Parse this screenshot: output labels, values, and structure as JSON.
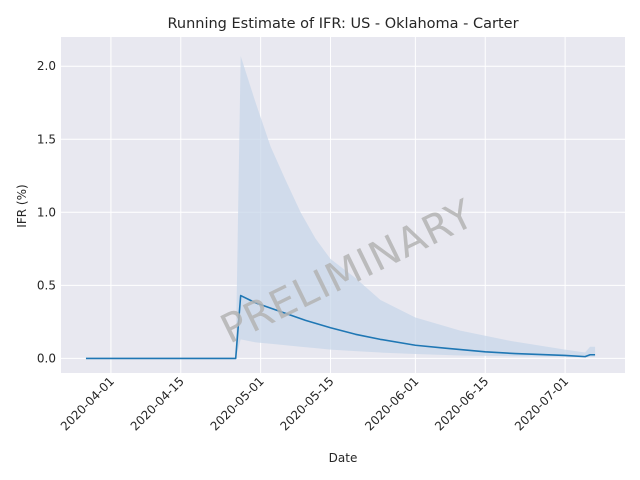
{
  "chart_data": {
    "type": "line",
    "title": "Running Estimate of IFR: US - Oklahoma - Carter",
    "xlabel": "Date",
    "ylabel": "IFR (%)",
    "watermark": "PRELIMINARY",
    "x_tick_labels": [
      "2020-04-01",
      "2020-04-15",
      "2020-05-01",
      "2020-05-15",
      "2020-06-01",
      "2020-06-15",
      "2020-07-01"
    ],
    "y_tick_labels": [
      "0.0",
      "0.5",
      "1.0",
      "1.5",
      "2.0"
    ],
    "x_range": [
      "2020-03-22",
      "2020-07-13"
    ],
    "y_range": [
      -0.1,
      2.2
    ],
    "grid": true,
    "colors": {
      "line": "#1f77b4",
      "band": "#c8d7ea",
      "plot_background": "#e8e8f0",
      "grid": "#ffffff"
    },
    "series": [
      {
        "values": [
          [
            "2020-03-27",
            0.0
          ],
          [
            "2020-04-05",
            0.0
          ],
          [
            "2020-04-15",
            0.0
          ],
          [
            "2020-04-25",
            0.0
          ],
          [
            "2020-04-26",
            0.0
          ],
          [
            "2020-04-27",
            0.43
          ],
          [
            "2020-04-30",
            0.38
          ],
          [
            "2020-05-05",
            0.32
          ],
          [
            "2020-05-10",
            0.26
          ],
          [
            "2020-05-15",
            0.21
          ],
          [
            "2020-05-20",
            0.165
          ],
          [
            "2020-05-25",
            0.13
          ],
          [
            "2020-06-01",
            0.09
          ],
          [
            "2020-06-07",
            0.07
          ],
          [
            "2020-06-15",
            0.045
          ],
          [
            "2020-06-21",
            0.033
          ],
          [
            "2020-07-01",
            0.02
          ],
          [
            "2020-07-05",
            0.012
          ],
          [
            "2020-07-06",
            0.025
          ],
          [
            "2020-07-07",
            0.025
          ]
        ]
      }
    ],
    "confidence_band": [
      [
        "2020-04-26",
        0.0,
        0.0
      ],
      [
        "2020-04-27",
        0.13,
        2.07
      ],
      [
        "2020-04-30",
        0.11,
        1.75
      ],
      [
        "2020-05-03",
        0.1,
        1.45
      ],
      [
        "2020-05-06",
        0.09,
        1.22
      ],
      [
        "2020-05-09",
        0.08,
        1.0
      ],
      [
        "2020-05-12",
        0.07,
        0.82
      ],
      [
        "2020-05-15",
        0.06,
        0.68
      ],
      [
        "2020-05-20",
        0.05,
        0.55
      ],
      [
        "2020-05-25",
        0.04,
        0.4
      ],
      [
        "2020-06-01",
        0.03,
        0.28
      ],
      [
        "2020-06-10",
        0.02,
        0.19
      ],
      [
        "2020-06-20",
        0.015,
        0.12
      ],
      [
        "2020-07-01",
        0.01,
        0.06
      ],
      [
        "2020-07-05",
        0.006,
        0.04
      ],
      [
        "2020-07-06",
        0.01,
        0.08
      ],
      [
        "2020-07-07",
        0.01,
        0.08
      ]
    ]
  }
}
